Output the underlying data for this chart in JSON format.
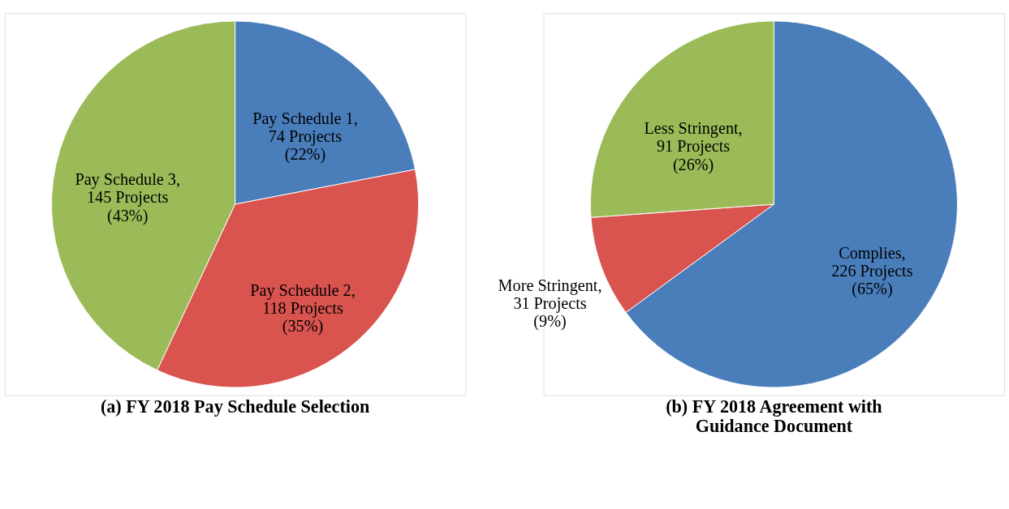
{
  "chart_data": [
    {
      "type": "pie",
      "title": "(a) FY 2018 Pay Schedule Selection",
      "categories": [
        "Pay Schedule 1",
        "Pay Schedule 2",
        "Pay Schedule 3"
      ],
      "values": [
        74,
        118,
        145
      ],
      "colors": [
        "#4a7ebb",
        "#d9534f",
        "#9bbb59"
      ],
      "value_labels": [
        ",\n74 Projects\n(22%)",
        ",\n118 Projects\n(35%)",
        ",\n145 Projects\n(43%)"
      ],
      "legend": false
    },
    {
      "type": "pie",
      "title": "(b) FY 2018 Agreement with\nGuidance Document",
      "categories": [
        "Complies",
        "More Stringent",
        "Less Stringent"
      ],
      "values": [
        226,
        31,
        91
      ],
      "colors": [
        "#4a7ebb",
        "#d9534f",
        "#9bbb59"
      ],
      "value_labels": [
        ",\n226 Projects\n(65%)",
        ",\n31 Projects\n(9%)",
        ",\n91 Projects\n(26%)"
      ],
      "legend": false
    }
  ]
}
